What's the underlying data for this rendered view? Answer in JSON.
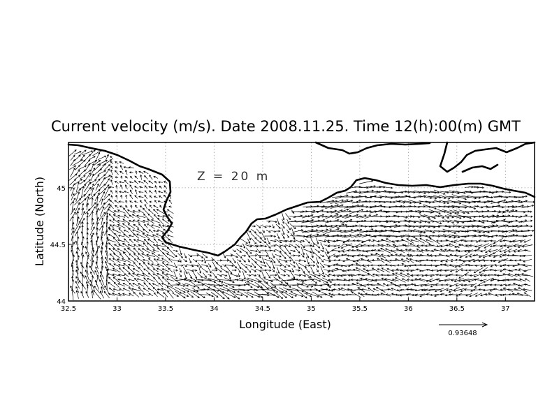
{
  "title": "Current velocity (m/s). Date 2008.11.25. Time 12(h):00(m) GMT",
  "depth_label": "Z = 20 m",
  "reference_vector_value": "0.93648",
  "chart_data": {
    "type": "vector-field-map",
    "quantity": "Current velocity",
    "units": "m/s",
    "date": "2008.11.25",
    "time": "12(h):00(m) GMT",
    "depth": "20 m",
    "reference_vector": 0.93648,
    "xlabel": "Longitude (East)",
    "ylabel": "Latitude (North)",
    "xlim": [
      32.5,
      37.3
    ],
    "ylim": [
      44.0,
      45.4
    ],
    "x_ticks": [
      "32.5",
      "33",
      "33.5",
      "34",
      "34.5",
      "35",
      "35.5",
      "36",
      "36.5",
      "37"
    ],
    "y_ticks": [
      "44",
      "44.5",
      "45"
    ],
    "grid": true,
    "coastline_color": "#000000",
    "arrow_color": "#000000"
  }
}
